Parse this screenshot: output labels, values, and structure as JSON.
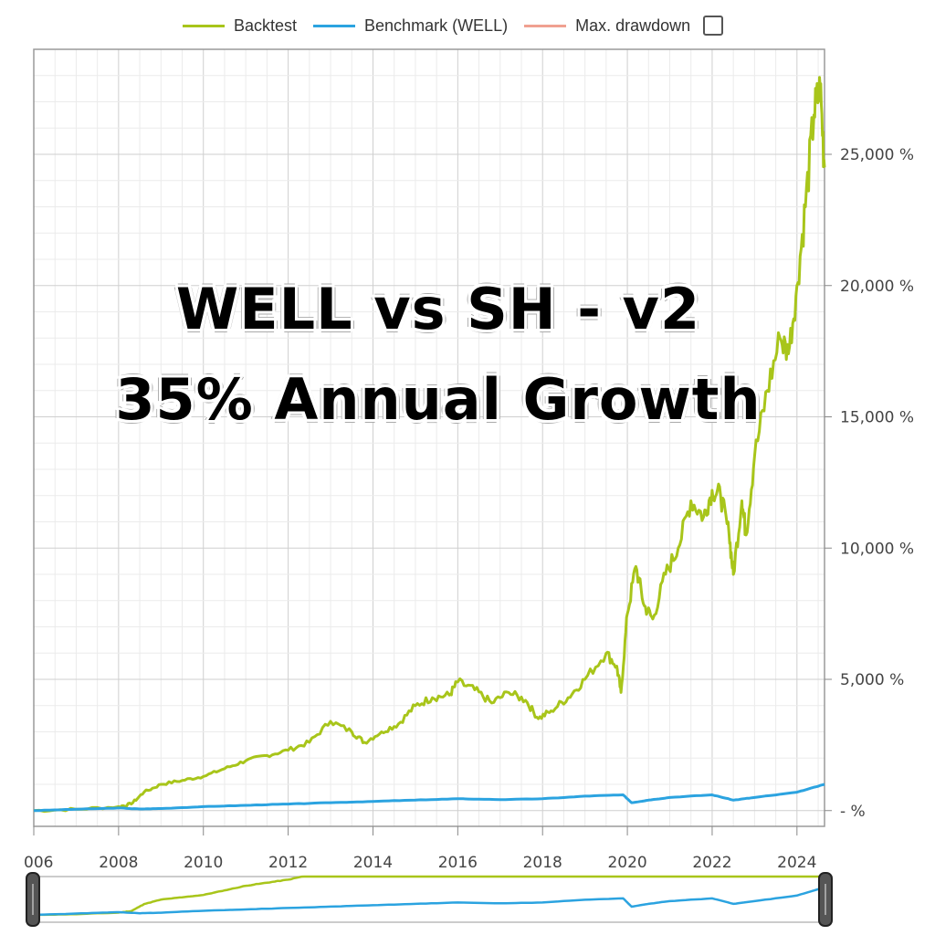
{
  "legend": {
    "items": [
      {
        "label": "Backtest",
        "color": "#a8c51a"
      },
      {
        "label": "Benchmark (WELL)",
        "color": "#2ba3e0"
      },
      {
        "label": "Max. drawdown",
        "color": "#f0a090"
      }
    ]
  },
  "overlay": {
    "line1": "WELL vs SH - v2",
    "line2": "35% Annual Growth"
  },
  "chart_data": {
    "type": "line",
    "title": "WELL vs SH - v2 / 35% Annual Growth",
    "xlabel": "",
    "ylabel": "",
    "xlim": [
      2006,
      2024.65
    ],
    "ylim": [
      -600,
      29000
    ],
    "grid": true,
    "legend_position": "top",
    "x_ticks": [
      "006",
      "2008",
      "2010",
      "2012",
      "2014",
      "2016",
      "2018",
      "2020",
      "2022",
      "2024"
    ],
    "y_ticks": [
      "- %",
      "5,000 %",
      "10,000 %",
      "15,000 %",
      "20,000 %",
      "25,000 %"
    ],
    "series": [
      {
        "name": "Backtest",
        "color": "#a8c51a",
        "points": [
          [
            2006.0,
            0
          ],
          [
            2007.0,
            50
          ],
          [
            2008.0,
            150
          ],
          [
            2008.3,
            250
          ],
          [
            2008.6,
            700
          ],
          [
            2009.0,
            1000
          ],
          [
            2009.5,
            1150
          ],
          [
            2010.0,
            1300
          ],
          [
            2010.5,
            1600
          ],
          [
            2011.0,
            1900
          ],
          [
            2011.5,
            2100
          ],
          [
            2012.0,
            2300
          ],
          [
            2012.5,
            2600
          ],
          [
            2013.0,
            3400
          ],
          [
            2013.5,
            3000
          ],
          [
            2013.8,
            2600
          ],
          [
            2014.2,
            3000
          ],
          [
            2014.6,
            3300
          ],
          [
            2015.0,
            4000
          ],
          [
            2015.4,
            4300
          ],
          [
            2015.8,
            4400
          ],
          [
            2016.0,
            4900
          ],
          [
            2016.4,
            4600
          ],
          [
            2016.8,
            4100
          ],
          [
            2017.2,
            4500
          ],
          [
            2017.6,
            4200
          ],
          [
            2017.9,
            3500
          ],
          [
            2018.2,
            3800
          ],
          [
            2018.6,
            4300
          ],
          [
            2019.0,
            5000
          ],
          [
            2019.5,
            6000
          ],
          [
            2019.75,
            5500
          ],
          [
            2019.85,
            4500
          ],
          [
            2020.0,
            7500
          ],
          [
            2020.2,
            9300
          ],
          [
            2020.4,
            7800
          ],
          [
            2020.6,
            7300
          ],
          [
            2020.9,
            9000
          ],
          [
            2021.2,
            10000
          ],
          [
            2021.5,
            11800
          ],
          [
            2021.8,
            11200
          ],
          [
            2022.0,
            12200
          ],
          [
            2022.2,
            12000
          ],
          [
            2022.4,
            10500
          ],
          [
            2022.5,
            9000
          ],
          [
            2022.7,
            11800
          ],
          [
            2022.8,
            10500
          ],
          [
            2023.0,
            13500
          ],
          [
            2023.3,
            16000
          ],
          [
            2023.6,
            18000
          ],
          [
            2023.8,
            17400
          ],
          [
            2024.0,
            20000
          ],
          [
            2024.2,
            23000
          ],
          [
            2024.4,
            26500
          ],
          [
            2024.55,
            27500
          ],
          [
            2024.65,
            24500
          ]
        ]
      },
      {
        "name": "Benchmark (WELL)",
        "color": "#2ba3e0",
        "points": [
          [
            2006.0,
            0
          ],
          [
            2007.0,
            50
          ],
          [
            2008.0,
            100
          ],
          [
            2008.5,
            60
          ],
          [
            2009.0,
            80
          ],
          [
            2010.0,
            150
          ],
          [
            2011.0,
            200
          ],
          [
            2012.0,
            250
          ],
          [
            2013.0,
            300
          ],
          [
            2014.0,
            350
          ],
          [
            2015.0,
            400
          ],
          [
            2016.0,
            450
          ],
          [
            2017.0,
            420
          ],
          [
            2018.0,
            450
          ],
          [
            2019.0,
            550
          ],
          [
            2019.9,
            600
          ],
          [
            2020.1,
            300
          ],
          [
            2020.5,
            400
          ],
          [
            2021.0,
            500
          ],
          [
            2022.0,
            600
          ],
          [
            2022.5,
            400
          ],
          [
            2023.0,
            500
          ],
          [
            2024.0,
            700
          ],
          [
            2024.65,
            1000
          ]
        ]
      },
      {
        "name": "Max. drawdown",
        "color": "#f0a090",
        "points": []
      }
    ]
  }
}
